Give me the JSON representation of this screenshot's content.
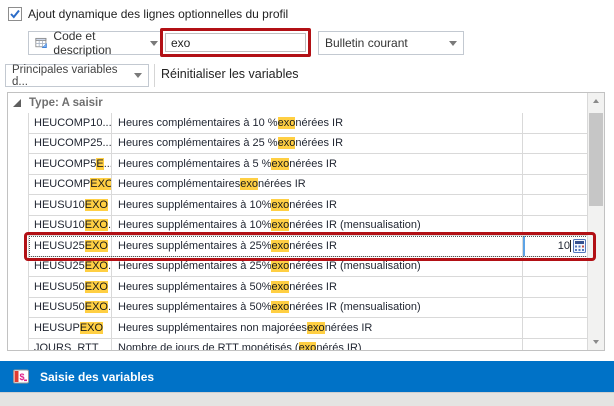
{
  "header": {
    "profile_checkbox_label": "Ajout dynamique des lignes optionnelles du profil",
    "checkbox_checked": true
  },
  "toolbar": {
    "search_mode_combo": "Code et description",
    "search_value": "exo",
    "scope_combo": "Bulletin courant",
    "variables_combo": "Principales variables d...",
    "reset_label": "Réinitialiser les variables"
  },
  "grid": {
    "group_label": "Type: A saisir",
    "rows": [
      {
        "code": {
          "pre": "HEUCOMP10...",
          "hl": "",
          "post": ""
        },
        "desc": {
          "pre": "Heures complémentaires à 10 % ",
          "hl": "exo",
          "post": "nérées IR"
        },
        "value": "",
        "selected": false
      },
      {
        "code": {
          "pre": "HEUCOMP25...",
          "hl": "",
          "post": ""
        },
        "desc": {
          "pre": "Heures complémentaires à 25 % ",
          "hl": "exo",
          "post": "nérées IR"
        },
        "value": "",
        "selected": false
      },
      {
        "code": {
          "pre": "HEUCOMP5",
          "hl": "E",
          "post": "..."
        },
        "desc": {
          "pre": "Heures complémentaires à 5 % ",
          "hl": "exo",
          "post": "nérées IR"
        },
        "value": "",
        "selected": false
      },
      {
        "code": {
          "pre": "HEUCOMP",
          "hl": "EXO",
          "post": ""
        },
        "desc": {
          "pre": "Heures complémentaires ",
          "hl": "exo",
          "post": "nérées IR"
        },
        "value": "",
        "selected": false
      },
      {
        "code": {
          "pre": "HEUSU10",
          "hl": "EXO",
          "post": ""
        },
        "desc": {
          "pre": "Heures supplémentaires à 10% ",
          "hl": "exo",
          "post": "nérées IR"
        },
        "value": "",
        "selected": false
      },
      {
        "code": {
          "pre": "HEUSU10",
          "hl": "EXO",
          "post": "..."
        },
        "desc": {
          "pre": "Heures supplémentaires à 10% ",
          "hl": "exo",
          "post": "nérées IR (mensualisation)"
        },
        "value": "",
        "selected": false
      },
      {
        "code": {
          "pre": "HEUSU25",
          "hl": "EXO",
          "post": ""
        },
        "desc": {
          "pre": "Heures supplémentaires à 25% ",
          "hl": "exo",
          "post": "nérées IR"
        },
        "value": "10",
        "selected": true
      },
      {
        "code": {
          "pre": "HEUSU25",
          "hl": "EXO",
          "post": "..."
        },
        "desc": {
          "pre": "Heures supplémentaires à 25% ",
          "hl": "exo",
          "post": "nérées IR (mensualisation)"
        },
        "value": "",
        "selected": false
      },
      {
        "code": {
          "pre": "HEUSU50",
          "hl": "EXO",
          "post": ""
        },
        "desc": {
          "pre": "Heures supplémentaires à 50% ",
          "hl": "exo",
          "post": "nérées IR"
        },
        "value": "",
        "selected": false
      },
      {
        "code": {
          "pre": "HEUSU50",
          "hl": "EXO",
          "post": "..."
        },
        "desc": {
          "pre": "Heures supplémentaires à 50% ",
          "hl": "exo",
          "post": "nérées IR (mensualisation)"
        },
        "value": "",
        "selected": false
      },
      {
        "code": {
          "pre": "HEUSUP",
          "hl": "EXO",
          "post": ""
        },
        "desc": {
          "pre": "Heures supplémentaires non majorées ",
          "hl": "exo",
          "post": "nérées IR"
        },
        "value": "",
        "selected": false
      },
      {
        "code": {
          "pre": "JOURS_RTT",
          "hl": "",
          "post": ""
        },
        "desc": {
          "pre": "Nombre de jours de RTT monétisés (",
          "hl": "exo",
          "post": "nérés IR)"
        },
        "value": "",
        "selected": false
      }
    ]
  },
  "footer": {
    "title": "Saisie des variables"
  },
  "colors": {
    "accent_blue": "#0072c7",
    "annotation_red": "#b21015",
    "highlight": "#ffcf43",
    "edit_border_blue": "#5ca3e6"
  }
}
